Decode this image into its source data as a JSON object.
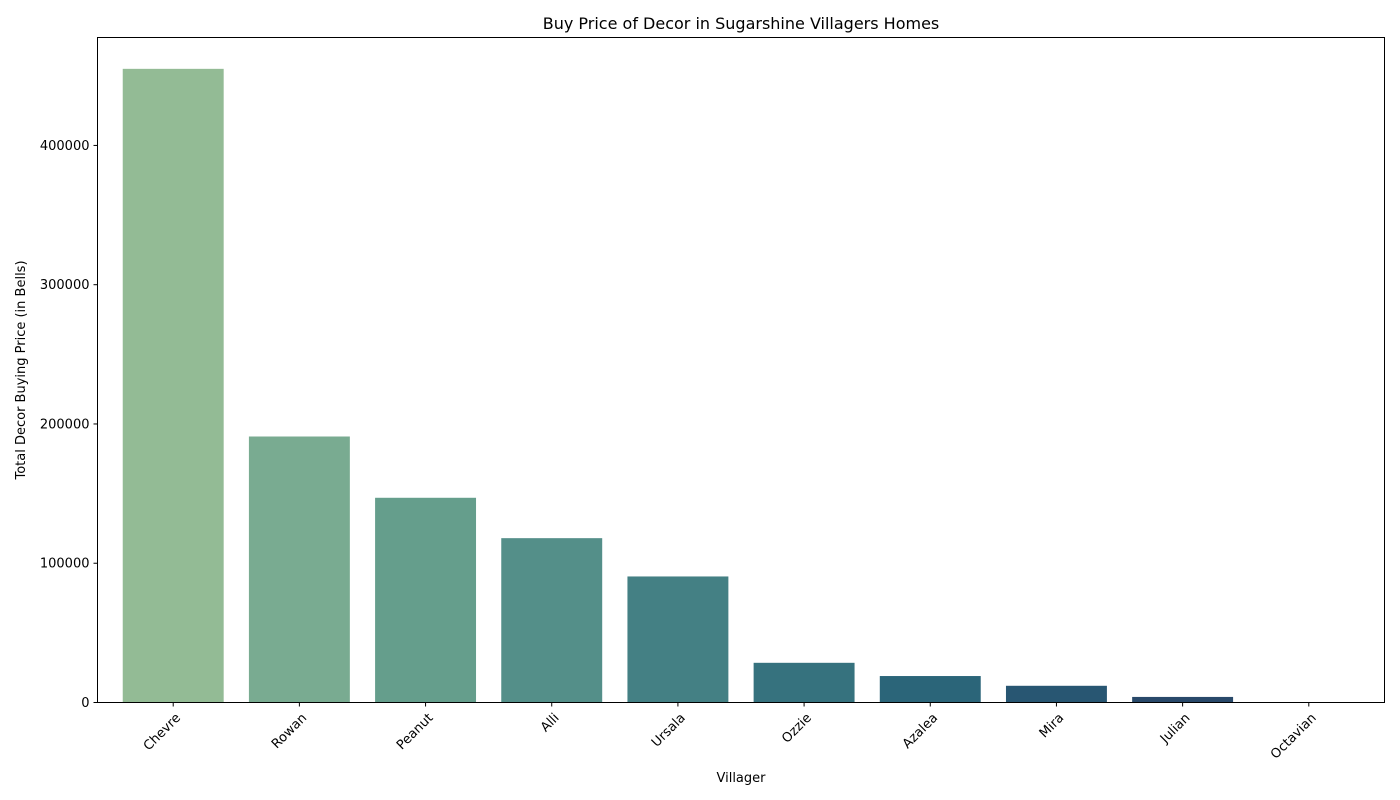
{
  "chart_data": {
    "type": "bar",
    "title": "Buy Price of Decor in Sugarshine Villagers Homes",
    "xlabel": "Villager",
    "ylabel": "Total Decor Buying Price (in Bells)",
    "categories": [
      "Chevre",
      "Rowan",
      "Peanut",
      "Alli",
      "Ursala",
      "Ozzie",
      "Azalea",
      "Mira",
      "Julian",
      "Octavian"
    ],
    "values": [
      455000,
      191000,
      147000,
      118000,
      90500,
      28500,
      19000,
      12000,
      4000,
      0
    ],
    "colors": [
      "#93bb95",
      "#79ab91",
      "#659e8c",
      "#548f89",
      "#448084",
      "#36727e",
      "#2b6579",
      "#285672",
      "#29496a",
      "#2a3d61"
    ],
    "ylim": [
      0,
      477500
    ],
    "yticks": [
      0,
      100000,
      200000,
      300000,
      400000
    ],
    "ytick_labels": [
      "0",
      "100000",
      "200000",
      "300000",
      "400000"
    ],
    "grid": false,
    "legend": "none"
  }
}
